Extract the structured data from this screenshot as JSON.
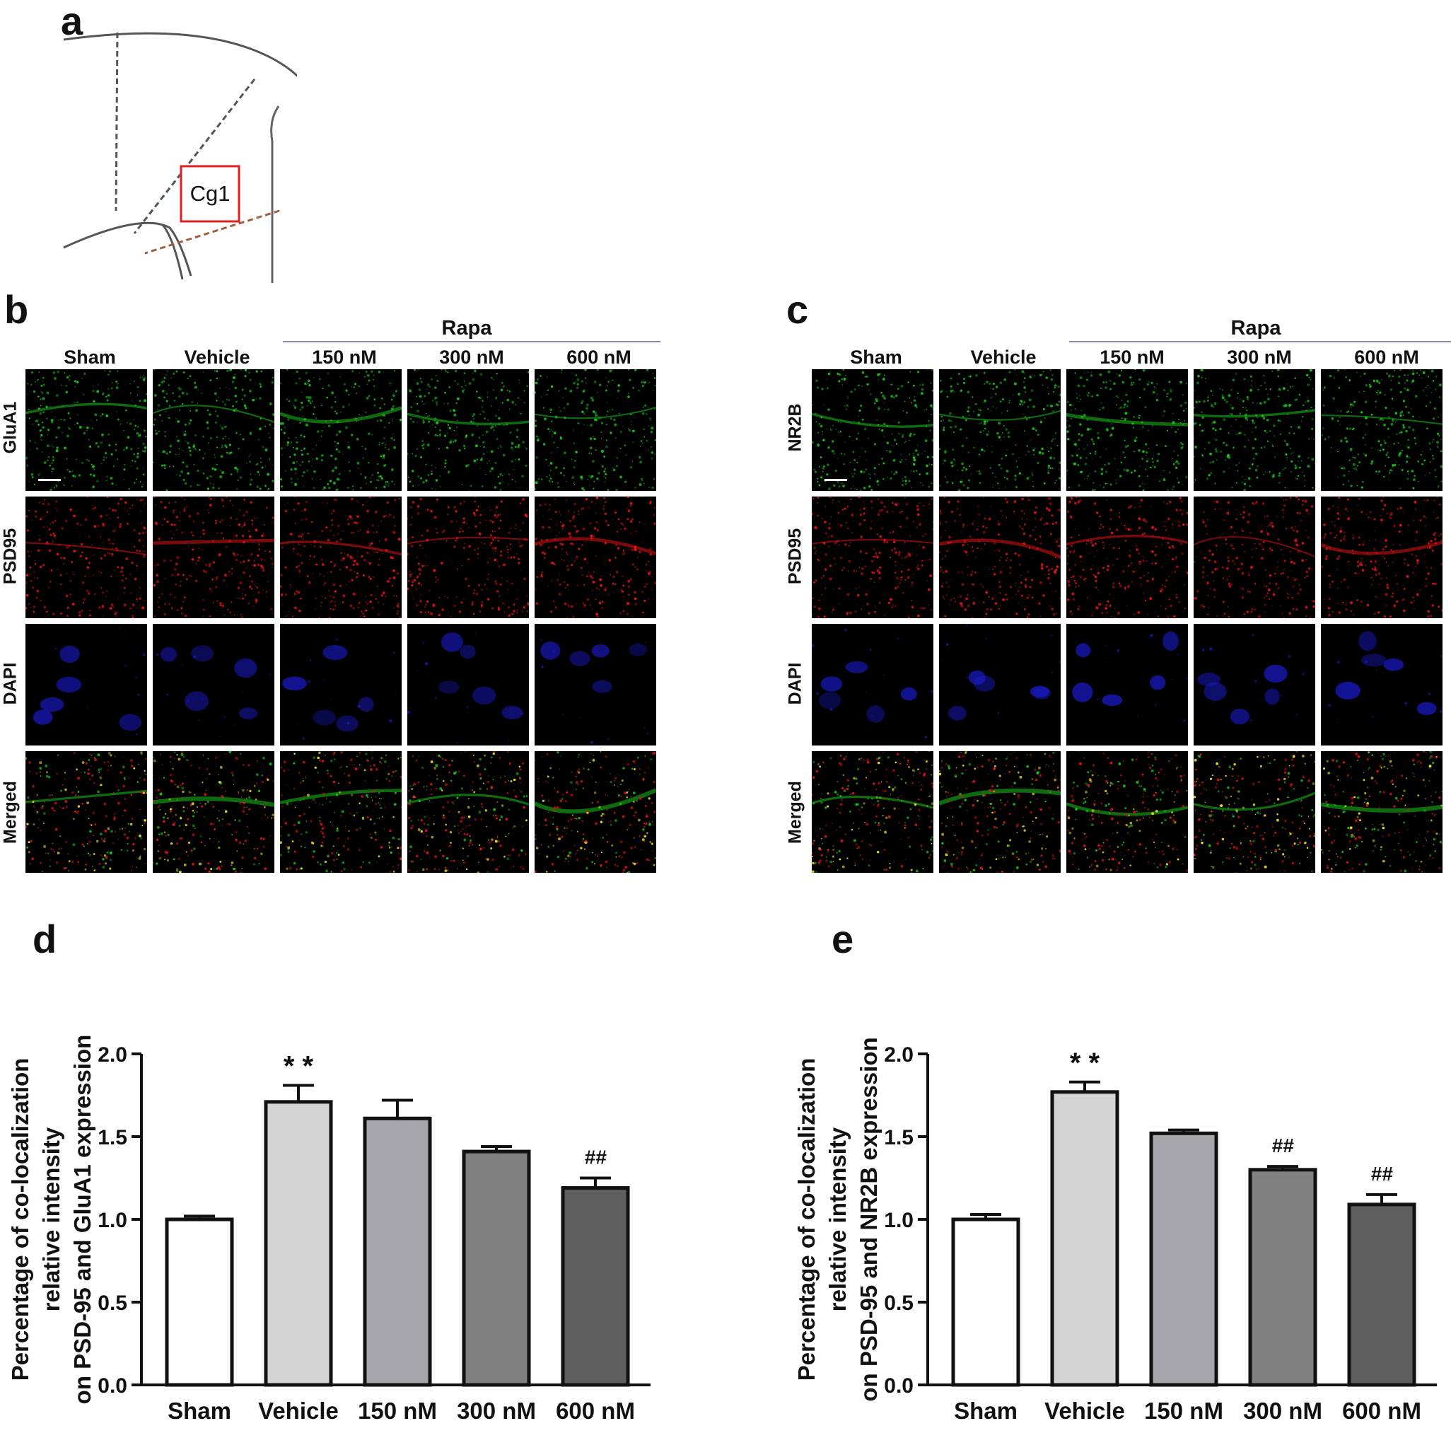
{
  "panel_letters": {
    "a": "a",
    "b": "b",
    "c": "c",
    "d": "d",
    "e": "e"
  },
  "schematic": {
    "region_label": "Cg1"
  },
  "panel_b": {
    "group_label": "Rapa",
    "columns": [
      "Sham",
      "Vehicle",
      "150 nM",
      "300 nM",
      "600 nM"
    ],
    "rows": [
      "GluA1",
      "PSD95",
      "DAPI",
      "Merged"
    ]
  },
  "panel_c": {
    "group_label": "Rapa",
    "columns": [
      "Sham",
      "Vehicle",
      "150 nM",
      "300 nM",
      "600 nM"
    ],
    "rows": [
      "NR2B",
      "PSD95",
      "DAPI",
      "Merged"
    ]
  },
  "colors": {
    "green_channel": "#19c419",
    "red_channel": "#e01414",
    "blue_channel": "#1a1ac8",
    "bar_fills": [
      "#ffffff",
      "#d4d4d4",
      "#a6a6aa",
      "#808080",
      "#5e5e5e"
    ]
  },
  "chart_data": [
    {
      "type": "bar",
      "panel": "d",
      "categories": [
        "Sham",
        "Vehicle",
        "150 nM",
        "300 nM",
        "600 nM"
      ],
      "values": [
        1.0,
        1.71,
        1.61,
        1.41,
        1.19
      ],
      "errors": [
        0.02,
        0.1,
        0.11,
        0.03,
        0.06
      ],
      "annotations": [
        "",
        "* *",
        "",
        "",
        "##"
      ],
      "ylabel_lines": [
        "Percentage of co-localization",
        "relative intensity",
        "on PSD-95 and GluA1 expression"
      ],
      "ylim": [
        0.0,
        2.0
      ],
      "yticks": [
        "0.0",
        "0.5",
        "1.0",
        "1.5",
        "2.0"
      ],
      "tick_values": [
        0.0,
        0.5,
        1.0,
        1.5,
        2.0
      ]
    },
    {
      "type": "bar",
      "panel": "e",
      "categories": [
        "Sham",
        "Vehicle",
        "150 nM",
        "300 nM",
        "600 nM"
      ],
      "values": [
        1.0,
        1.77,
        1.52,
        1.3,
        1.09
      ],
      "errors": [
        0.03,
        0.06,
        0.02,
        0.02,
        0.06
      ],
      "annotations": [
        "",
        "* *",
        "",
        "##",
        "##"
      ],
      "ylabel_lines": [
        "Percentage of co-localization",
        "relative intensity",
        "on PSD-95 and NR2B expression"
      ],
      "ylim": [
        0.0,
        2.0
      ],
      "yticks": [
        "0.0",
        "0.5",
        "1.0",
        "1.5",
        "2.0"
      ],
      "tick_values": [
        0.0,
        0.5,
        1.0,
        1.5,
        2.0
      ]
    }
  ]
}
